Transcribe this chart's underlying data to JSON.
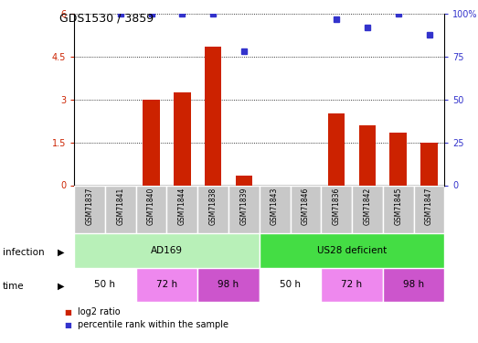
{
  "title": "GDS1530 / 3859",
  "samples": [
    "GSM71837",
    "GSM71841",
    "GSM71840",
    "GSM71844",
    "GSM71838",
    "GSM71839",
    "GSM71843",
    "GSM71846",
    "GSM71836",
    "GSM71842",
    "GSM71845",
    "GSM71847"
  ],
  "log2_ratio": [
    0,
    0,
    3.0,
    3.25,
    4.85,
    0.35,
    0,
    0,
    2.5,
    2.1,
    1.85,
    1.5
  ],
  "percentile_rank": [
    null,
    100,
    100,
    100,
    100,
    78,
    null,
    null,
    97,
    92,
    100,
    88
  ],
  "bar_color": "#cc2200",
  "dot_color": "#3333cc",
  "ylim_left": [
    0,
    6
  ],
  "ylim_right": [
    0,
    100
  ],
  "yticks_left": [
    0,
    1.5,
    3,
    4.5,
    6
  ],
  "yticks_right": [
    0,
    25,
    50,
    75,
    100
  ],
  "ytick_labels_left": [
    "0",
    "1.5",
    "3",
    "4.5",
    "6"
  ],
  "ytick_labels_right": [
    "0",
    "25",
    "50",
    "75",
    "100%"
  ],
  "infection_groups": [
    {
      "label": "AD169",
      "start": 0,
      "end": 6,
      "color": "#b8f0b8"
    },
    {
      "label": "US28 deficient",
      "start": 6,
      "end": 12,
      "color": "#44dd44"
    }
  ],
  "time_groups": [
    {
      "label": "50 h",
      "start": 0,
      "end": 2,
      "color": "#ffffff"
    },
    {
      "label": "72 h",
      "start": 2,
      "end": 4,
      "color": "#ee88ee"
    },
    {
      "label": "98 h",
      "start": 4,
      "end": 6,
      "color": "#cc55cc"
    },
    {
      "label": "50 h",
      "start": 6,
      "end": 8,
      "color": "#ffffff"
    },
    {
      "label": "72 h",
      "start": 8,
      "end": 10,
      "color": "#ee88ee"
    },
    {
      "label": "98 h",
      "start": 10,
      "end": 12,
      "color": "#cc55cc"
    }
  ],
  "legend_items": [
    {
      "label": "log2 ratio",
      "color": "#cc2200"
    },
    {
      "label": "percentile rank within the sample",
      "color": "#3333cc"
    }
  ],
  "infection_label": "infection",
  "time_label": "time",
  "background_color": "#ffffff",
  "grid_color": "#000000",
  "sample_bg_color": "#c8c8c8"
}
